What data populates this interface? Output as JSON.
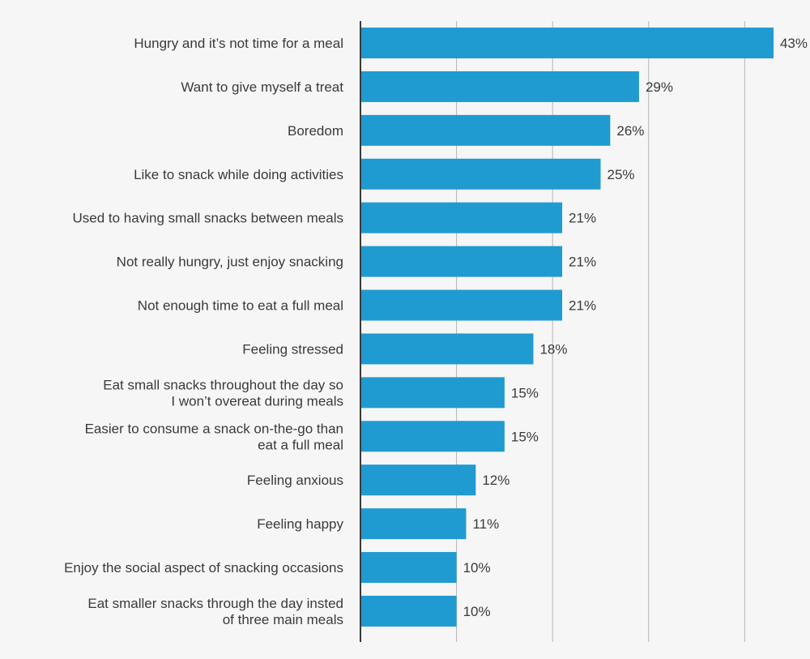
{
  "chart_data": {
    "type": "bar",
    "orientation": "horizontal",
    "title": "",
    "xlabel": "",
    "ylabel": "",
    "xlim": [
      0,
      50
    ],
    "grid": true,
    "legend": "none",
    "bar_color": "#1f9bd1",
    "gridline_color": "#b5b5b5",
    "axis_color": "#3a3a3a",
    "categories": [
      [
        "Hungry and it’s not time for a meal"
      ],
      [
        "Want to give myself a treat"
      ],
      [
        "Boredom"
      ],
      [
        "Like to snack while doing activities"
      ],
      [
        "Used to having small snacks between meals"
      ],
      [
        "Not really hungry, just enjoy snacking"
      ],
      [
        "Not enough time to eat a full meal"
      ],
      [
        "Feeling stressed"
      ],
      [
        "Eat small snacks throughout the day so",
        "I won’t overeat during meals"
      ],
      [
        "Easier to consume a snack on-the-go than",
        "eat a full meal"
      ],
      [
        "Feeling anxious"
      ],
      [
        "Feeling happy"
      ],
      [
        "Enjoy the social aspect of snacking occasions"
      ],
      [
        "Eat smaller snacks through the day insted",
        "of three main meals"
      ]
    ],
    "values": [
      43,
      29,
      26,
      25,
      21,
      21,
      21,
      18,
      15,
      15,
      12,
      11,
      10,
      10
    ],
    "value_labels": [
      "43%",
      "29%",
      "26%",
      "25%",
      "21%",
      "21%",
      "21%",
      "18%",
      "15%",
      "15%",
      "12%",
      "11%",
      "10%",
      "10%"
    ]
  }
}
